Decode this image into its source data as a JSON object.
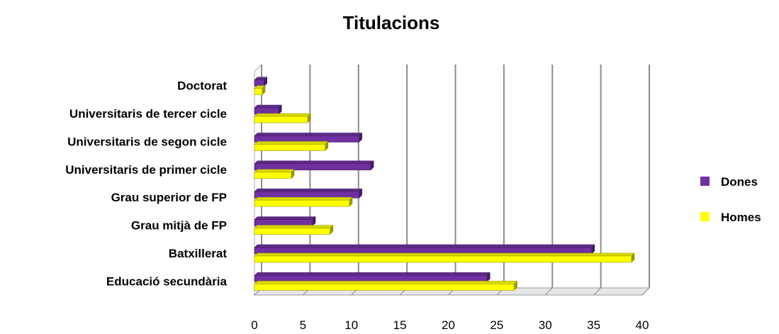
{
  "chart_data": {
    "type": "bar",
    "orientation": "horizontal",
    "style": "3d",
    "title": "Titulacions",
    "categories": [
      "Doctorat",
      "Universitaris de tercer cicle",
      "Universitaris de segon cicle",
      "Universitaris de primer cicle",
      "Grau superior de FP",
      "Grau mitjà de FP",
      "Batxillerat",
      "Educació secundària"
    ],
    "series": [
      {
        "name": "Dones",
        "color": "#7030a0",
        "values": [
          1,
          2.5,
          10.8,
          12,
          10.8,
          6,
          34.8,
          24
        ]
      },
      {
        "name": "Homes",
        "color": "#ffff00",
        "values": [
          0.8,
          5.5,
          7.3,
          3.8,
          9.8,
          7.8,
          38.9,
          26.8
        ]
      }
    ],
    "xlim": [
      0,
      40
    ],
    "xticks": [
      "0",
      "5",
      "10",
      "15",
      "20",
      "25",
      "30",
      "35",
      "40"
    ],
    "grid": true,
    "legend": "right"
  }
}
